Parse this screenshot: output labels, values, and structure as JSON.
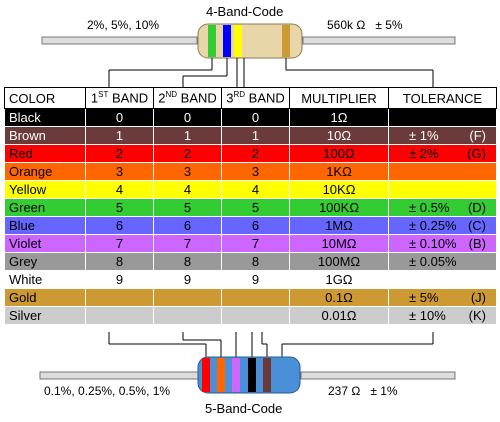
{
  "top": {
    "title": "4-Band-Code",
    "left_label": "2%, 5%, 10%",
    "right_label": "560k Ω   ± 5%"
  },
  "bottom": {
    "title": "5-Band-Code",
    "left_label": "0.1%, 0.25%, 0.5%, 1%",
    "right_label": "237 Ω   ± 1%"
  },
  "table": {
    "headers": {
      "color": "COLOR",
      "band1": "1",
      "band1_sup": "ST",
      "band1_word": " BAND",
      "band2": "2",
      "band2_sup": "ND",
      "band2_word": " BAND",
      "band3": "3",
      "band3_sup": "RD",
      "band3_word": " BAND",
      "multiplier": "MULTIPLIER",
      "tolerance": "TOLERANCE"
    },
    "rows": [
      {
        "name": "Black",
        "b1": "0",
        "b2": "0",
        "b3": "0",
        "mult": "1Ω",
        "tol": "",
        "code": "",
        "bg": "#000000",
        "fg": "#ffffff"
      },
      {
        "name": "Brown",
        "b1": "1",
        "b2": "1",
        "b3": "1",
        "mult": "10Ω",
        "tol": "± 1%",
        "code": "(F)",
        "bg": "#6b3b3b",
        "fg": "#ffffff"
      },
      {
        "name": "Red",
        "b1": "2",
        "b2": "2",
        "b3": "2",
        "mult": "100Ω",
        "tol": "± 2%",
        "code": "(G)",
        "bg": "#ff0000",
        "fg": "#000000"
      },
      {
        "name": "Orange",
        "b1": "3",
        "b2": "3",
        "b3": "3",
        "mult": "1KΩ",
        "tol": "",
        "code": "",
        "bg": "#ff6600",
        "fg": "#000000"
      },
      {
        "name": "Yellow",
        "b1": "4",
        "b2": "4",
        "b3": "4",
        "mult": "10KΩ",
        "tol": "",
        "code": "",
        "bg": "#ffff00",
        "fg": "#000000"
      },
      {
        "name": "Green",
        "b1": "5",
        "b2": "5",
        "b3": "5",
        "mult": "100KΩ",
        "tol": "± 0.5%",
        "code": "(D)",
        "bg": "#33cc33",
        "fg": "#000000"
      },
      {
        "name": "Blue",
        "b1": "6",
        "b2": "6",
        "b3": "6",
        "mult": "1MΩ",
        "tol": "± 0.25%",
        "code": "(C)",
        "bg": "#6666ff",
        "fg": "#000000"
      },
      {
        "name": "Violet",
        "b1": "7",
        "b2": "7",
        "b3": "7",
        "mult": "10MΩ",
        "tol": "± 0.10%",
        "code": "(B)",
        "bg": "#cc66ff",
        "fg": "#000000"
      },
      {
        "name": "Grey",
        "b1": "8",
        "b2": "8",
        "b3": "8",
        "mult": "100MΩ",
        "tol": "± 0.05%",
        "code": "",
        "bg": "#999999",
        "fg": "#000000"
      },
      {
        "name": "White",
        "b1": "9",
        "b2": "9",
        "b3": "9",
        "mult": "1GΩ",
        "tol": "",
        "code": "",
        "bg": "#ffffff",
        "fg": "#000000"
      },
      {
        "name": "Gold",
        "b1": "",
        "b2": "",
        "b3": "",
        "mult": "0.1Ω",
        "tol": "± 5%",
        "code": "(J)",
        "bg": "#cc9933",
        "fg": "#000000"
      },
      {
        "name": "Silver",
        "b1": "",
        "b2": "",
        "b3": "",
        "mult": "0.01Ω",
        "tol": "± 10%",
        "code": "(K)",
        "bg": "#cccccc",
        "fg": "#000000"
      }
    ]
  },
  "resistor_top": {
    "body_color": "#e8d5a8",
    "band_colors": [
      "#33cc33",
      "#0000ff",
      "#ffff00",
      "#cc9933"
    ]
  },
  "resistor_bottom": {
    "body_color": "#4a90d9",
    "band_colors": [
      "#ff0000",
      "#ff6600",
      "#cc66ff",
      "#000000",
      "#6b3b3b"
    ]
  }
}
